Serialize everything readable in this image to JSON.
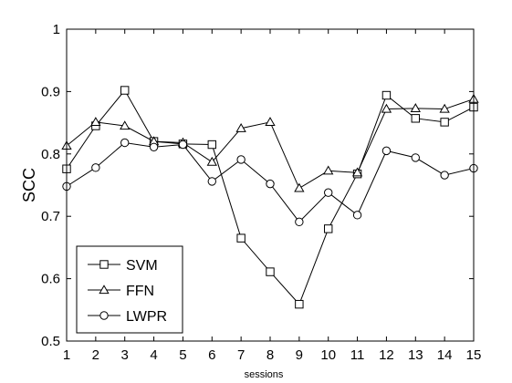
{
  "chart_data": {
    "type": "line",
    "title": "",
    "xlabel": "sessions",
    "ylabel": "SCC",
    "x": [
      1,
      2,
      3,
      4,
      5,
      6,
      7,
      8,
      9,
      10,
      11,
      12,
      13,
      14,
      15
    ],
    "xlim": [
      1,
      15
    ],
    "ylim": [
      0.5,
      1.0
    ],
    "yticks": [
      0.5,
      0.6,
      0.7,
      0.8,
      0.9,
      1.0
    ],
    "ytick_labels": [
      "0.5",
      "0.6",
      "0.7",
      "0.8",
      "0.9",
      "1"
    ],
    "xtick_labels": [
      "1",
      "2",
      "3",
      "4",
      "5",
      "6",
      "7",
      "8",
      "9",
      "10",
      "11",
      "12",
      "13",
      "14",
      "15"
    ],
    "grid": false,
    "legend_position": "bottom-left",
    "series": [
      {
        "name": "SVM",
        "marker": "square",
        "values": [
          0.776,
          0.845,
          0.902,
          0.82,
          0.816,
          0.815,
          0.665,
          0.611,
          0.559,
          0.68,
          0.768,
          0.894,
          0.857,
          0.851,
          0.875
        ]
      },
      {
        "name": "FFN",
        "marker": "triangle",
        "values": [
          0.813,
          0.851,
          0.845,
          0.82,
          0.818,
          0.787,
          0.841,
          0.851,
          0.745,
          0.773,
          0.77,
          0.872,
          0.873,
          0.872,
          0.888
        ]
      },
      {
        "name": "LWPR",
        "marker": "circle",
        "values": [
          0.748,
          0.778,
          0.818,
          0.811,
          0.815,
          0.756,
          0.791,
          0.752,
          0.691,
          0.738,
          0.702,
          0.805,
          0.794,
          0.766,
          0.777
        ]
      }
    ]
  }
}
